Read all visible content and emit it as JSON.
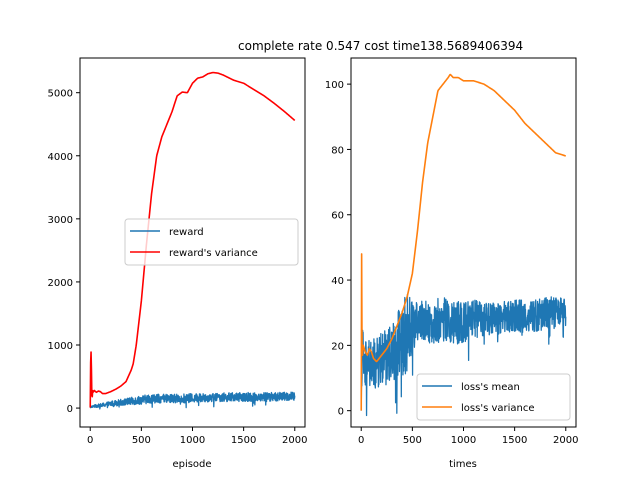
{
  "figure": {
    "title": "complete rate 0.547    cost time138.5689406394"
  },
  "colors": {
    "blue": "#1f77b4",
    "red": "#ff0000",
    "orange": "#ff7f0e",
    "axes": "#000000",
    "legend_border": "#cccccc"
  },
  "chart_data": [
    {
      "type": "line",
      "title": "",
      "xlabel": "episode",
      "ylabel": "",
      "xlim": [
        -100,
        2100
      ],
      "ylim": [
        -300,
        5550
      ],
      "xticks": [
        0,
        500,
        1000,
        1500,
        2000
      ],
      "yticks": [
        0,
        1000,
        2000,
        3000,
        4000,
        5000
      ],
      "grid": false,
      "legend_position": "center-right",
      "series": [
        {
          "name": "reward",
          "color": "#1f77b4",
          "noisy": true,
          "x": [
            0,
            10,
            40,
            100,
            200,
            300,
            400,
            500,
            600,
            800,
            1000,
            1200,
            1500,
            1800,
            2000
          ],
          "y": [
            0,
            20,
            30,
            40,
            70,
            90,
            110,
            130,
            150,
            150,
            160,
            170,
            175,
            180,
            185
          ],
          "noise": [
            0,
            10,
            20,
            30,
            40,
            50,
            60,
            70,
            70,
            70,
            70,
            70,
            70,
            70,
            70
          ]
        },
        {
          "name": "reward's variance",
          "color": "#ff0000",
          "noisy": false,
          "x": [
            0,
            5,
            10,
            15,
            20,
            25,
            30,
            40,
            60,
            80,
            100,
            120,
            150,
            200,
            250,
            300,
            350,
            400,
            420,
            450,
            500,
            550,
            600,
            650,
            700,
            750,
            800,
            850,
            900,
            950,
            1000,
            1050,
            1100,
            1150,
            1200,
            1250,
            1300,
            1400,
            1500,
            1600,
            1700,
            1800,
            1900,
            2000
          ],
          "y": [
            10,
            900,
            880,
            200,
            180,
            300,
            250,
            280,
            250,
            270,
            260,
            230,
            230,
            260,
            300,
            350,
            420,
            600,
            700,
            1000,
            1700,
            2600,
            3400,
            4000,
            4300,
            4500,
            4700,
            4950,
            5010,
            5000,
            5150,
            5230,
            5250,
            5300,
            5320,
            5310,
            5280,
            5200,
            5150,
            5050,
            4950,
            4830,
            4700,
            4560
          ]
        }
      ]
    },
    {
      "type": "line",
      "title": "",
      "xlabel": "times",
      "ylabel": "",
      "xlim": [
        -100,
        2100
      ],
      "ylim": [
        -5,
        108
      ],
      "xticks": [
        0,
        500,
        1000,
        1500,
        2000
      ],
      "yticks": [
        0,
        20,
        40,
        60,
        80,
        100
      ],
      "grid": false,
      "legend_position": "lower-right",
      "series": [
        {
          "name": "loss's mean",
          "color": "#1f77b4",
          "noisy": true,
          "x": [
            0,
            10,
            30,
            50,
            100,
            150,
            200,
            250,
            300,
            350,
            400,
            450,
            500,
            550,
            600,
            700,
            800,
            900,
            1000,
            1100,
            1200,
            1300,
            1400,
            1500,
            1600,
            1700,
            1800,
            1900,
            2000
          ],
          "y": [
            0,
            20,
            12,
            14,
            14,
            14,
            16,
            17,
            18,
            20,
            22,
            24,
            26,
            27,
            28,
            27,
            28,
            27,
            27,
            28,
            28,
            28,
            29,
            29,
            29,
            29,
            30,
            30,
            30
          ],
          "noise": [
            0,
            8,
            8,
            8,
            8,
            8,
            8,
            8,
            9,
            10,
            12,
            12,
            8,
            6,
            6,
            7,
            7,
            7,
            6,
            6,
            5,
            5,
            5,
            5,
            5,
            5,
            5,
            5,
            4
          ]
        },
        {
          "name": "loss's variance",
          "color": "#ff7f0e",
          "noisy": false,
          "x": [
            0,
            3,
            6,
            9,
            12,
            20,
            40,
            60,
            80,
            100,
            120,
            150,
            200,
            250,
            300,
            350,
            400,
            450,
            500,
            550,
            600,
            650,
            700,
            750,
            800,
            850,
            870,
            900,
            950,
            1000,
            1100,
            1200,
            1300,
            1400,
            1500,
            1600,
            1700,
            1800,
            1900,
            2000
          ],
          "y": [
            0,
            57,
            30,
            12,
            17,
            20,
            18,
            17,
            19,
            18,
            16,
            15,
            17,
            19,
            22,
            26,
            30,
            35,
            42,
            55,
            70,
            82,
            90,
            98,
            100,
            102,
            103,
            102,
            102,
            101,
            101,
            100,
            98,
            95,
            92,
            88,
            85,
            82,
            79,
            78
          ]
        }
      ]
    }
  ]
}
